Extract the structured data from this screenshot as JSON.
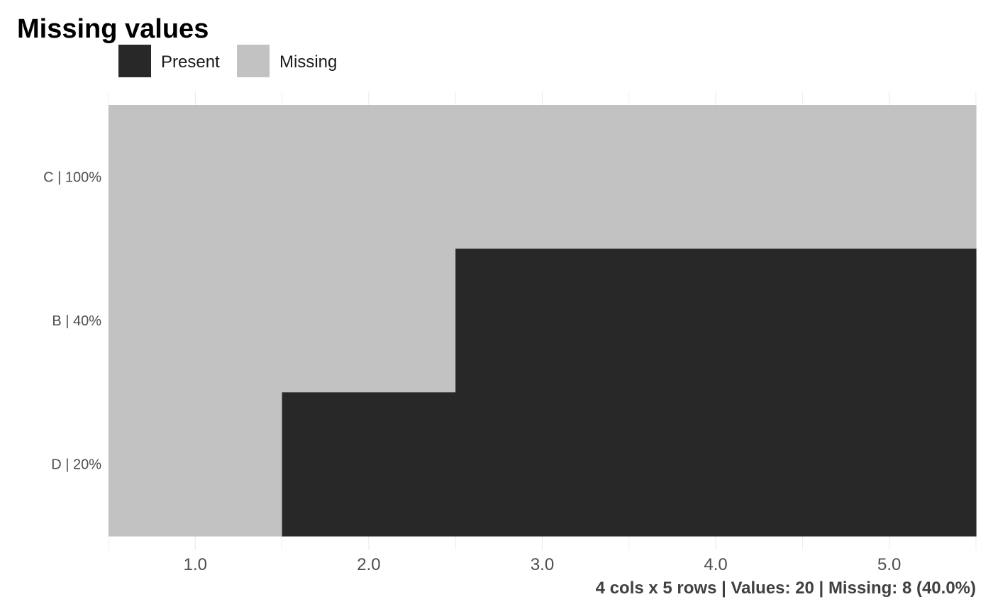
{
  "chart_data": {
    "type": "heatmap",
    "title": "Missing values",
    "caption": "4 cols x 5 rows | Values: 20 | Missing: 8 (40.0%)",
    "xlim": [
      0.5,
      5.5
    ],
    "x_ticks": [
      1,
      2,
      3,
      4,
      5
    ],
    "x_tick_labels": [
      "1.0",
      "2.0",
      "3.0",
      "4.0",
      "5.0"
    ],
    "grid": true,
    "legend": {
      "position": "top-left",
      "entries": [
        {
          "label": "Present",
          "color": "#282828"
        },
        {
          "label": "Missing",
          "color": "#c2c2c2"
        }
      ]
    },
    "rows": [
      {
        "label": "C | 100%",
        "status": [
          "missing",
          "missing",
          "missing",
          "missing",
          "missing"
        ]
      },
      {
        "label": "B | 40%",
        "status": [
          "missing",
          "missing",
          "present",
          "present",
          "present"
        ]
      },
      {
        "label": "D | 20%",
        "status": [
          "missing",
          "present",
          "present",
          "present",
          "present"
        ]
      }
    ]
  }
}
